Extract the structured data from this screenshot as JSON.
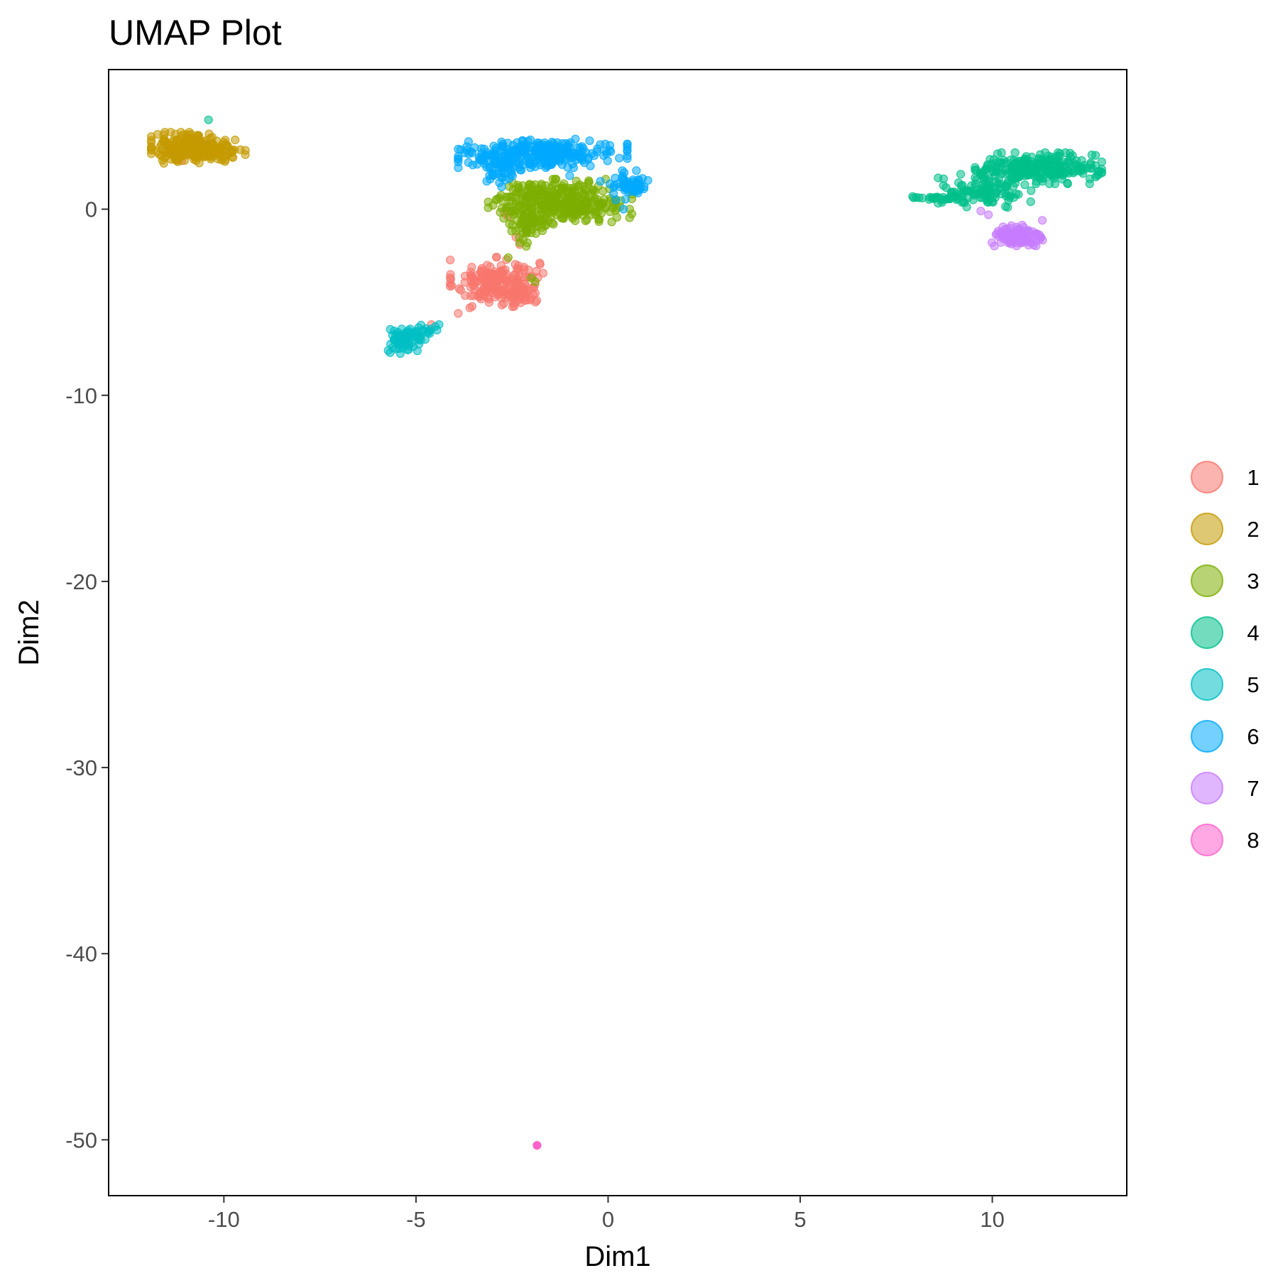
{
  "chart_data": {
    "type": "scatter",
    "title": "UMAP Plot",
    "xlabel": "Dim1",
    "ylabel": "Dim2",
    "xlim": [
      -13,
      13.5
    ],
    "ylim": [
      -53,
      7.5
    ],
    "x_ticks": [
      -10,
      -5,
      0,
      5,
      10
    ],
    "x_tick_labels": [
      "-10",
      "-5",
      "0",
      "5",
      "10"
    ],
    "y_ticks": [
      0,
      -10,
      -20,
      -30,
      -40,
      -50
    ],
    "y_tick_labels": [
      "0",
      "-10",
      "-20",
      "-30",
      "-40",
      "-50"
    ],
    "grid": false,
    "legend_placement": "right",
    "point_opacity": 0.55,
    "series": [
      {
        "name": "1",
        "color": "#F8766D",
        "clusters": [
          {
            "cx": -2.9,
            "cy": -3.9,
            "sx": 0.55,
            "sy": 0.6,
            "n": 190
          },
          {
            "cx": -2.3,
            "cy": -4.6,
            "sx": 0.25,
            "sy": 0.3,
            "n": 40
          }
        ],
        "points": [
          [
            -3.9,
            -5.6
          ],
          [
            -3.6,
            -5.3
          ],
          [
            -4.6,
            -6.2
          ],
          [
            -2.7,
            -0.2
          ],
          [
            -2.4,
            -1.5
          ],
          [
            -2.3,
            -1.9
          ],
          [
            -11.1,
            2.6
          ],
          [
            -2.6,
            -0.4
          ]
        ]
      },
      {
        "name": "2",
        "color": "#C49A00",
        "clusters": [
          {
            "cx": -10.9,
            "cy": 3.3,
            "sx": 0.45,
            "sy": 0.38,
            "n": 240
          },
          {
            "cx": -10.1,
            "cy": 3.2,
            "sx": 0.3,
            "sy": 0.3,
            "n": 50
          }
        ],
        "points": []
      },
      {
        "name": "3",
        "color": "#7CAE00",
        "clusters": [
          {
            "cx": -1.25,
            "cy": 0.4,
            "sx": 0.85,
            "sy": 0.55,
            "n": 330
          },
          {
            "cx": -2.1,
            "cy": -1.0,
            "sx": 0.3,
            "sy": 0.45,
            "n": 45
          }
        ],
        "points": [
          [
            -2.0,
            -3.7
          ],
          [
            -1.9,
            -3.9
          ],
          [
            -2.6,
            -2.6
          ],
          [
            -2.3,
            -1.8
          ],
          [
            -2.9,
            2.5
          ]
        ]
      },
      {
        "name": "4",
        "color": "#00C08B",
        "clusters": [
          {
            "cx": 11.2,
            "cy": 2.2,
            "sx": 0.75,
            "sy": 0.38,
            "n": 260
          },
          {
            "cx": 9.8,
            "cy": 1.0,
            "sx": 0.55,
            "sy": 0.4,
            "n": 110
          },
          {
            "cx": 8.5,
            "cy": 0.6,
            "sx": 0.4,
            "sy": 0.05,
            "n": 24
          }
        ],
        "points": [
          [
            -10.4,
            4.8
          ],
          [
            10.7,
            -1.1
          ],
          [
            10.9,
            -1.2
          ],
          [
            11.0,
            0.4
          ],
          [
            10.4,
            0.1
          ]
        ]
      },
      {
        "name": "5",
        "color": "#00BFC4",
        "clusters": [
          {
            "cx": -5.3,
            "cy": -7.1,
            "sx": 0.22,
            "sy": 0.3,
            "n": 75
          },
          {
            "cx": -4.9,
            "cy": -6.6,
            "sx": 0.25,
            "sy": 0.18,
            "n": 20
          }
        ],
        "points": [
          [
            -4.5,
            -6.3
          ],
          [
            -4.4,
            -6.2
          ]
        ]
      },
      {
        "name": "6",
        "color": "#00A9FF",
        "clusters": [
          {
            "cx": -1.7,
            "cy": 3.0,
            "sx": 1.0,
            "sy": 0.35,
            "n": 260
          },
          {
            "cx": -2.8,
            "cy": 2.3,
            "sx": 0.35,
            "sy": 0.5,
            "n": 60
          },
          {
            "cx": 0.55,
            "cy": 1.3,
            "sx": 0.3,
            "sy": 0.35,
            "n": 50
          }
        ],
        "points": [
          [
            -1.0,
            1.8
          ],
          [
            -0.2,
            1.5
          ],
          [
            0.2,
            0.5
          ],
          [
            0.4,
            0.0
          ]
        ]
      },
      {
        "name": "7",
        "color": "#C77CFF",
        "clusters": [
          {
            "cx": 10.65,
            "cy": -1.5,
            "sx": 0.3,
            "sy": 0.3,
            "n": 110
          }
        ],
        "points": [
          [
            9.7,
            -0.1
          ],
          [
            9.9,
            -0.3
          ],
          [
            11.3,
            -0.6
          ]
        ]
      },
      {
        "name": "8",
        "color": "#FF61CC",
        "clusters": [],
        "points": [
          [
            -1.85,
            -50.3
          ]
        ]
      }
    ]
  }
}
